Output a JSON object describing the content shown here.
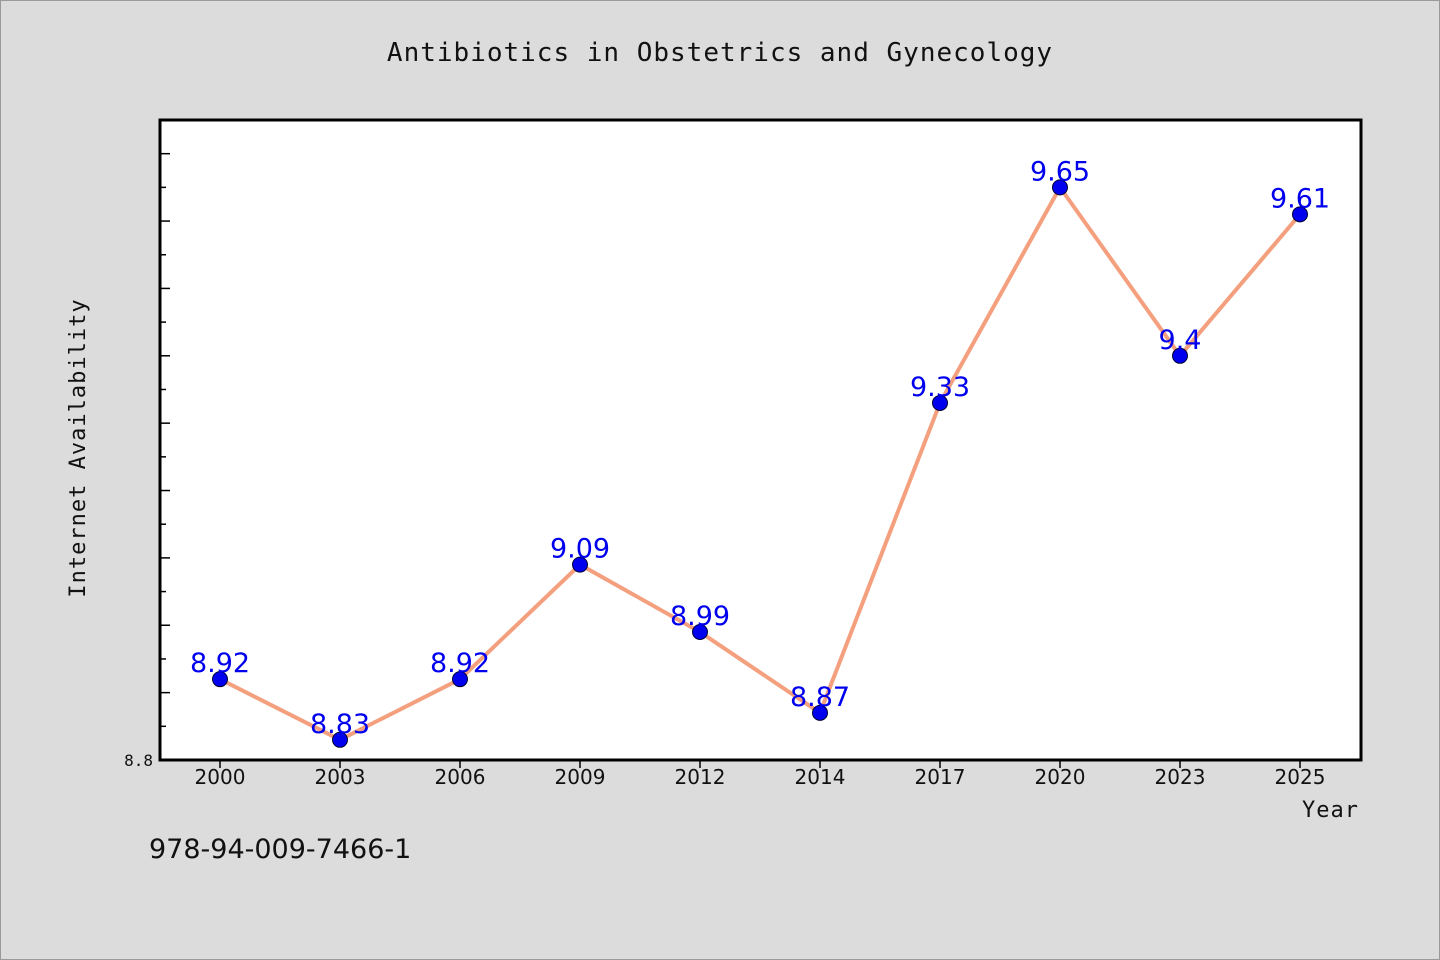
{
  "chart_data": {
    "type": "line",
    "title": "Antibiotics in Obstetrics and Gynecology",
    "xlabel": "Year",
    "ylabel": "Internet Availability",
    "categories": [
      "2000",
      "2003",
      "2006",
      "2009",
      "2012",
      "2014",
      "2017",
      "2020",
      "2023",
      "2025"
    ],
    "values": [
      8.92,
      8.83,
      8.92,
      9.09,
      8.99,
      8.87,
      9.33,
      9.65,
      9.4,
      9.61
    ],
    "data_labels": [
      "8.92",
      "8.83",
      "8.92",
      "9.09",
      "8.99",
      "8.87",
      "9.33",
      "9.65",
      "9.4",
      "9.61"
    ],
    "ylim": [
      8.8,
      9.75
    ],
    "y_tick_labels": [
      "8.8"
    ],
    "grid": false,
    "line_color": "#f4a07e",
    "marker_color": "#0000ee",
    "label_color": "#0000ee"
  },
  "footer": {
    "isbn": "978-94-009-7466-1"
  }
}
